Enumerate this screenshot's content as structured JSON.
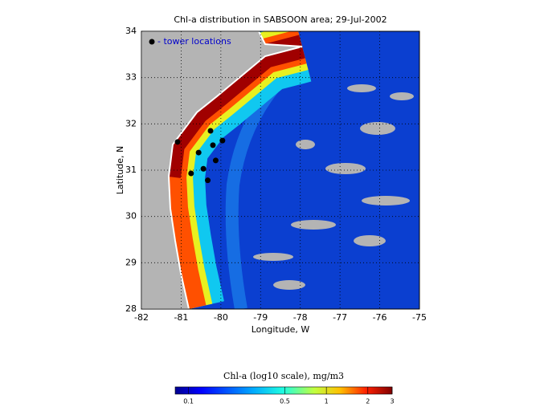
{
  "chart_data": {
    "type": "map",
    "title": "Chl-a distribution in SABSOON area; 29-Jul-2002",
    "x_label": "Longitude, W",
    "y_label": "Latitude, N",
    "xlim": [
      -82,
      -75
    ],
    "ylim": [
      28,
      34
    ],
    "xticks": [
      -82,
      -81,
      -80,
      -79,
      -78,
      -77,
      -76,
      -75
    ],
    "yticks": [
      28,
      29,
      30,
      31,
      32,
      33,
      34
    ],
    "legend": "- tower locations",
    "points": {
      "x": [
        -81.09,
        -80.26,
        -79.96,
        -80.2,
        -80.56,
        -80.13,
        -80.44,
        -80.75,
        -80.33
      ],
      "y": [
        31.61,
        31.85,
        31.64,
        31.54,
        31.38,
        31.21,
        31.03,
        30.93,
        30.78
      ],
      "color": "#000000"
    },
    "colorbar": {
      "label": "Chl-a (log10 scale), mg/m3",
      "log": true,
      "clim": [
        0.08,
        3
      ],
      "ticks": [
        0.1,
        0.5,
        1,
        2,
        3
      ]
    }
  }
}
